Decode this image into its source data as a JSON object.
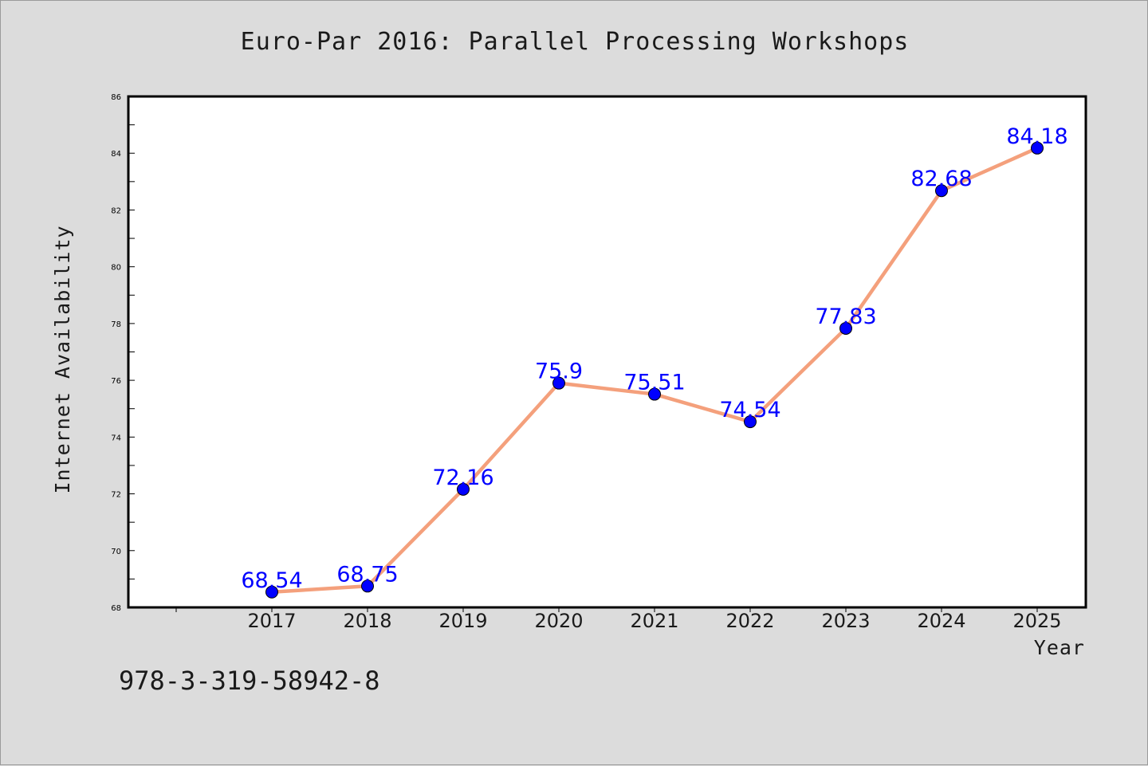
{
  "chart_data": {
    "type": "line",
    "title": "Euro-Par 2016: Parallel Processing Workshops",
    "xlabel": "Year",
    "ylabel": "Internet Availability",
    "categories": [
      "2017",
      "2018",
      "2019",
      "2020",
      "2021",
      "2022",
      "2023",
      "2024",
      "2025"
    ],
    "values": [
      68.54,
      68.75,
      72.16,
      75.9,
      75.51,
      74.54,
      77.83,
      82.68,
      84.18
    ],
    "data_labels": [
      "68.54",
      "68.75",
      "72.16",
      "75.9",
      "75.51",
      "74.54",
      "77.83",
      "82.68",
      "84.18"
    ],
    "ylim": [
      68,
      86
    ],
    "yticks": [
      68,
      70,
      72,
      74,
      76,
      78,
      80,
      82,
      84,
      86
    ],
    "grid": false,
    "legend": "none",
    "colors": {
      "line": "#f4a07c",
      "marker": "#0000ff",
      "label": "#0000ff",
      "background": "#dcdcdc",
      "plot_area": "#ffffff"
    }
  },
  "footer": {
    "identifier": "978-3-319-58942-8"
  }
}
